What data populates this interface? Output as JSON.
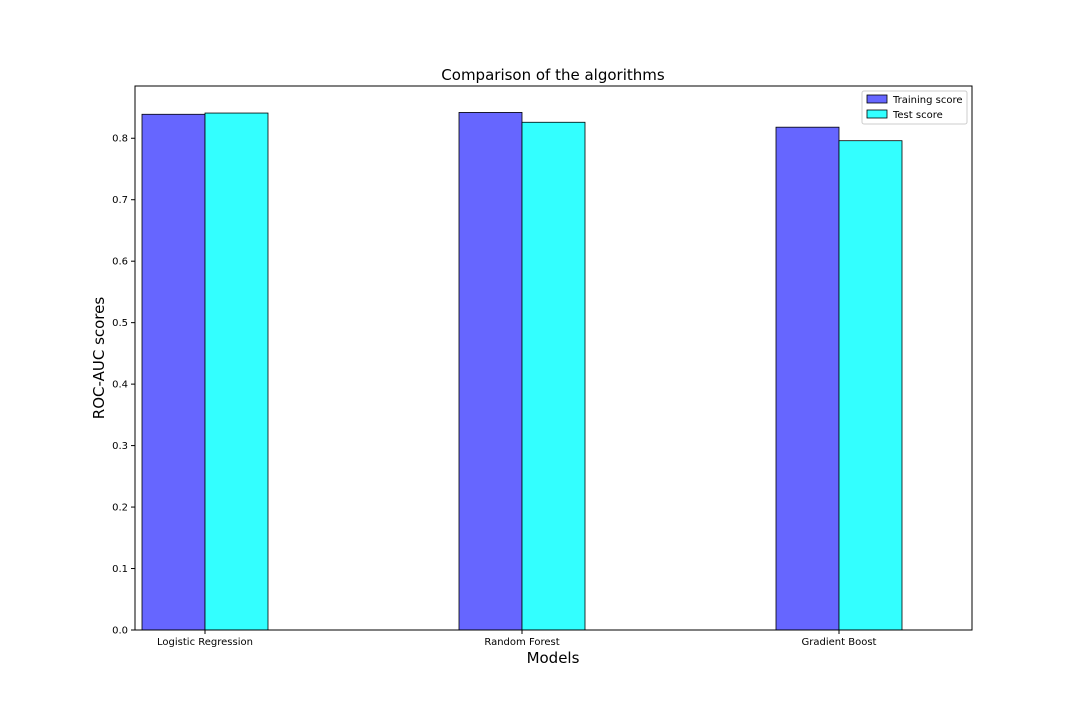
{
  "chart_data": {
    "type": "bar",
    "title": "Comparison of the algorithms",
    "xlabel": "Models",
    "ylabel": "ROC-AUC scores",
    "categories": [
      "Logistic Regression",
      "Random Forest",
      "Gradient Boost"
    ],
    "series": [
      {
        "name": "Training score",
        "values": [
          0.839,
          0.842,
          0.818
        ],
        "color": "#6666ff"
      },
      {
        "name": "Test score",
        "values": [
          0.841,
          0.826,
          0.796
        ],
        "color": "#33ffff"
      }
    ],
    "ylim": [
      0,
      0.885
    ],
    "yticks": [
      "0.0",
      "0.1",
      "0.2",
      "0.3",
      "0.4",
      "0.5",
      "0.6",
      "0.7",
      "0.8"
    ],
    "grid": false,
    "legend": "top-right"
  }
}
